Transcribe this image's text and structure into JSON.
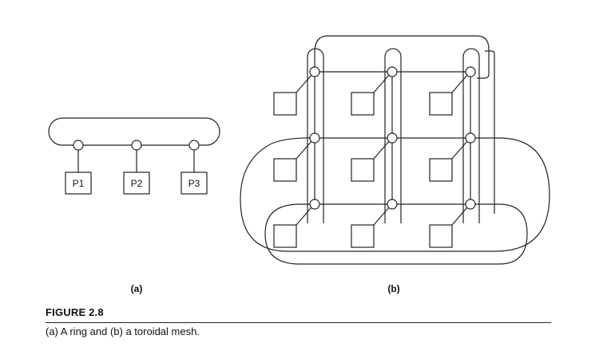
{
  "diagram": {
    "ring": {
      "processors": [
        "P1",
        "P2",
        "P3"
      ],
      "label": "(a)"
    },
    "torus": {
      "rows": 3,
      "cols": 3,
      "label": "(b)"
    }
  },
  "figure": {
    "number": "FIGURE 2.8",
    "caption": "(a) A ring and (b) a toroidal mesh."
  }
}
